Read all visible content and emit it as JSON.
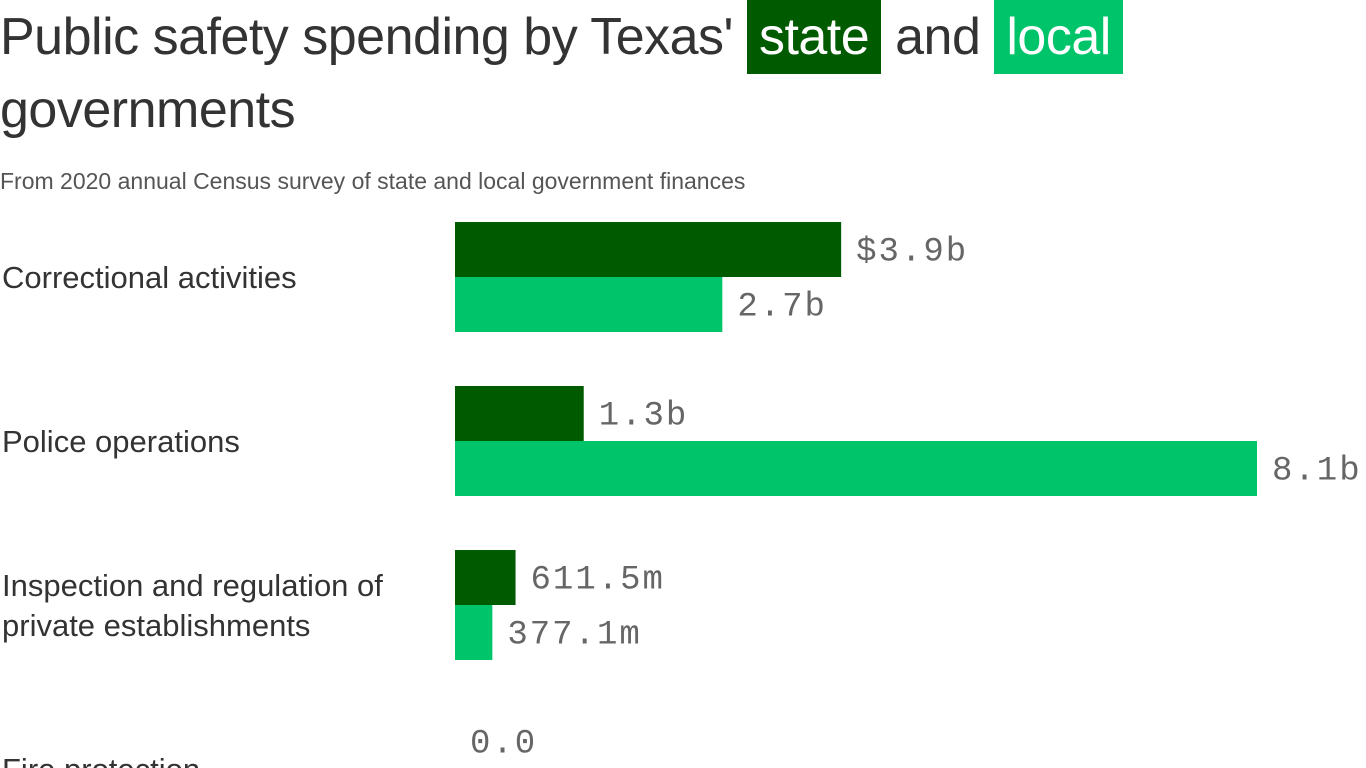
{
  "header": {
    "title_part1": "Public safety spending by Texas'",
    "title_state": "state",
    "title_and": "and",
    "title_local": "local",
    "title_part2": "governments",
    "subtitle": "From 2020 annual Census survey of state and local government finances"
  },
  "colors": {
    "state": "#005A00",
    "local": "#00C46A"
  },
  "chart_data": {
    "type": "bar",
    "orientation": "horizontal",
    "title": "Public safety spending by Texas' state and local governments",
    "subtitle": "From 2020 annual Census survey of state and local government finances",
    "units": "USD",
    "categories": [
      [
        "Correctional activities"
      ],
      [
        "Police operations"
      ],
      [
        "Inspection and regulation of",
        "private establishments"
      ],
      [
        "Fire protection"
      ]
    ],
    "series": [
      {
        "name": "state",
        "values": [
          3900000000,
          1300000000,
          611500000,
          0
        ],
        "labels": [
          "$3.9b",
          "1.3b",
          "611.5m",
          "0.0"
        ]
      },
      {
        "name": "local",
        "values": [
          2700000000,
          8100000000,
          377100000,
          null
        ],
        "labels": [
          "2.7b",
          "8.1b",
          "377.1m",
          ""
        ]
      }
    ],
    "xlim": [
      0,
      8100000000
    ],
    "grid": false,
    "legend": "in title"
  }
}
